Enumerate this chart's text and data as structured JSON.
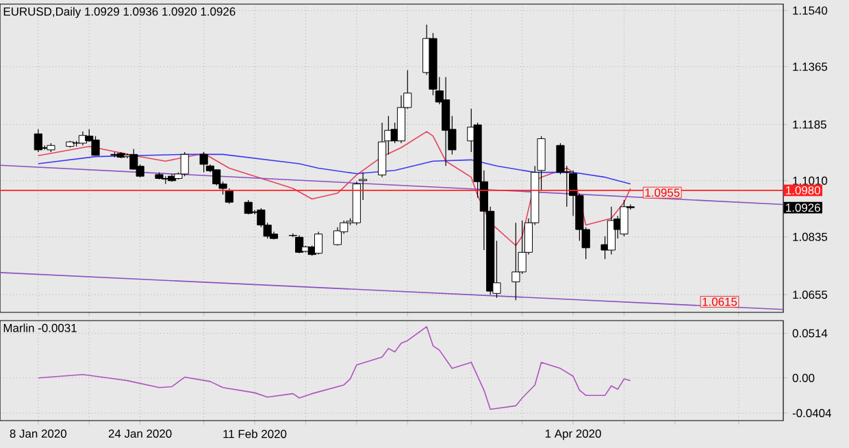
{
  "chart_data": [
    {
      "type": "candlestick",
      "title": "EURUSD,Daily 1.0929 1.0936 1.0920 1.0926",
      "x": [
        "2020-01-08",
        "2020-01-09",
        "2020-01-10",
        "2020-01-13",
        "2020-01-14",
        "2020-01-15",
        "2020-01-16",
        "2020-01-17",
        "2020-01-20",
        "2020-01-21",
        "2020-01-22",
        "2020-01-23",
        "2020-01-24",
        "2020-01-27",
        "2020-01-28",
        "2020-01-29",
        "2020-01-30",
        "2020-01-31",
        "2020-02-03",
        "2020-02-04",
        "2020-02-05",
        "2020-02-06",
        "2020-02-07",
        "2020-02-10",
        "2020-02-11",
        "2020-02-12",
        "2020-02-13",
        "2020-02-14",
        "2020-02-17",
        "2020-02-18",
        "2020-02-19",
        "2020-02-20",
        "2020-02-21",
        "2020-02-24",
        "2020-02-25",
        "2020-02-26",
        "2020-02-27",
        "2020-02-28",
        "2020-03-02",
        "2020-03-03",
        "2020-03-04",
        "2020-03-05",
        "2020-03-06",
        "2020-03-09",
        "2020-03-10",
        "2020-03-11",
        "2020-03-12",
        "2020-03-13",
        "2020-03-16",
        "2020-03-17",
        "2020-03-18",
        "2020-03-19",
        "2020-03-20",
        "2020-03-23",
        "2020-03-24",
        "2020-03-25",
        "2020-03-26",
        "2020-03-27",
        "2020-03-30",
        "2020-03-31",
        "2020-04-01",
        "2020-04-02",
        "2020-04-03",
        "2020-04-06",
        "2020-04-07",
        "2020-04-08",
        "2020-04-09",
        "2020-04-10"
      ],
      "ohlc": [
        [
          1.1156,
          1.117,
          1.1099,
          1.1106
        ],
        [
          1.1113,
          1.112,
          1.1106,
          1.1111
        ],
        [
          1.1106,
          1.1127,
          1.1099,
          1.112
        ],
        [
          1.1117,
          1.1134,
          1.1113,
          1.1131
        ],
        [
          1.1127,
          1.1134,
          1.1117,
          1.1128
        ],
        [
          1.1127,
          1.1163,
          1.112,
          1.1151
        ],
        [
          1.1149,
          1.117,
          1.1131,
          1.1134
        ],
        [
          1.1137,
          1.1149,
          1.1088,
          1.1089
        ],
        [
          1.1092,
          1.1099,
          1.1083,
          1.109
        ],
        [
          1.1095,
          1.1099,
          1.108,
          1.1083
        ],
        [
          1.1085,
          1.1095,
          1.108,
          1.109
        ],
        [
          1.1092,
          1.1109,
          1.1044,
          1.1046
        ],
        [
          1.1055,
          1.1061,
          1.1021,
          1.1024
        ],
        [
          1.1029,
          1.1036,
          1.1014,
          1.1017
        ],
        [
          1.1017,
          1.1024,
          1.1,
          1.1015
        ],
        [
          1.1024,
          1.1031,
          1.1007,
          1.101
        ],
        [
          1.1017,
          1.1036,
          1.1014,
          1.1031
        ],
        [
          1.1031,
          1.1099,
          1.1024,
          1.1092
        ],
        [
          1.1092,
          1.1099,
          1.1036,
          1.1061
        ],
        [
          1.1056,
          1.1061,
          1.1036,
          1.1041
        ],
        [
          1.1044,
          1.1046,
          1.0995,
          1.1
        ],
        [
          1.1,
          1.1007,
          1.0967,
          1.0986
        ],
        [
          1.0978,
          1.0986,
          1.0938,
          1.0943
        ],
        [
          1.0943,
          1.095,
          1.0905,
          1.0908
        ],
        [
          1.0913,
          1.0919,
          1.0905,
          1.0911
        ],
        [
          1.0919,
          1.0925,
          1.0865,
          1.0872
        ],
        [
          1.0872,
          1.0879,
          1.083,
          1.0837
        ],
        [
          1.0844,
          1.0851,
          1.0827,
          1.083
        ],
        [
          1.0839,
          1.0846,
          1.0834,
          1.084
        ],
        [
          1.0834,
          1.084,
          1.0784,
          1.0787
        ],
        [
          1.079,
          1.0808,
          1.0787,
          1.0804
        ],
        [
          1.0804,
          1.0808,
          1.0776,
          1.078
        ],
        [
          1.0784,
          1.0851,
          1.078,
          1.0844
        ],
        [
          1.0811,
          1.0865,
          1.0808,
          1.0854
        ],
        [
          1.0851,
          1.0886,
          1.0844,
          1.0879
        ],
        [
          1.0879,
          1.0893,
          1.0872,
          1.0884
        ],
        [
          1.0879,
          1.1007,
          1.0872,
          1.1
        ],
        [
          1.101,
          1.1036,
          1.095,
          1.1014
        ],
        [
          1.1028,
          1.1191,
          1.1021,
          1.1131
        ],
        [
          1.1134,
          1.1212,
          1.1092,
          1.1167
        ],
        [
          1.117,
          1.1191,
          1.1127,
          1.1134
        ],
        [
          1.1134,
          1.1276,
          1.1127,
          1.1238
        ],
        [
          1.1238,
          1.1354,
          1.1234,
          1.1283
        ],
        [
          1.1347,
          1.1496,
          1.134,
          1.1453
        ],
        [
          1.1453,
          1.147,
          1.1276,
          1.1295
        ],
        [
          1.129,
          1.1333,
          1.1248,
          1.1255
        ],
        [
          1.1262,
          1.1333,
          1.1056,
          1.1167
        ],
        [
          1.117,
          1.1212,
          1.1092,
          1.1106
        ],
        [
          1.1134,
          1.1234,
          1.1099,
          1.1177
        ],
        [
          1.1184,
          1.1191,
          1.0957,
          1.1007
        ],
        [
          1.1007,
          1.1042,
          1.0794,
          1.0915
        ],
        [
          1.0915,
          1.0929,
          1.0655,
          1.0666
        ],
        [
          1.0659,
          1.0823,
          1.0645,
          1.0692
        ],
        [
          1.0695,
          1.0879,
          1.0638,
          1.0726
        ],
        [
          1.0726,
          1.0886,
          1.072,
          1.0787
        ],
        [
          1.0787,
          1.0893,
          1.078,
          1.0879
        ],
        [
          1.0879,
          1.1056,
          1.0872,
          1.1036
        ],
        [
          1.1042,
          1.1149,
          1.0978,
          1.1141
        ],
        [
          1.112,
          1.1127,
          1.103,
          1.1036
        ],
        [
          1.1038,
          1.1056,
          1.0929,
          1.1036
        ],
        [
          1.1032,
          1.1042,
          1.09,
          1.0964
        ],
        [
          1.0964,
          1.097,
          1.0823,
          1.0858
        ],
        [
          1.0858,
          1.0865,
          1.0766,
          1.0801
        ],
        [
          1.0811,
          1.0837,
          1.0766,
          1.0794
        ],
        [
          1.0794,
          1.0929,
          1.078,
          1.0886
        ],
        [
          1.0891,
          1.09,
          1.083,
          1.0858
        ],
        [
          1.0844,
          1.095,
          1.0837,
          1.0929
        ],
        [
          1.0929,
          1.0936,
          1.092,
          1.0926
        ]
      ],
      "series": [
        {
          "type": "line",
          "color": "#e8405a",
          "x": [
            "2020-01-08",
            "2020-01-16",
            "2020-01-24",
            "2020-01-28",
            "2020-02-03",
            "2020-02-07",
            "2020-02-17",
            "2020-02-20",
            "2020-02-24",
            "2020-02-27",
            "2020-03-02",
            "2020-03-05",
            "2020-03-09",
            "2020-03-10",
            "2020-03-12",
            "2020-03-16",
            "2020-03-17",
            "2020-03-19",
            "2020-03-23",
            "2020-03-24",
            "2020-03-25",
            "2020-03-26",
            "2020-03-27",
            "2020-03-31",
            "2020-04-01",
            "2020-04-03",
            "2020-04-07",
            "2020-04-09",
            "2020-04-10"
          ],
          "values": [
            1.1088,
            1.1117,
            1.1085,
            1.1071,
            1.1095,
            1.1049,
            1.0986,
            1.0953,
            1.0971,
            1.1028,
            1.1085,
            1.1113,
            1.1163,
            1.1149,
            1.1071,
            1.1021,
            1.0964,
            1.0879,
            1.0808,
            1.0837,
            1.0922,
            1.1007,
            1.1021,
            1.1049,
            1.1036,
            1.0872,
            1.0893,
            1.0943,
            1.0986
          ]
        },
        {
          "type": "line",
          "color": "#3a3af0",
          "x": [
            "2020-01-08",
            "2020-01-17",
            "2020-01-31",
            "2020-02-06",
            "2020-02-18",
            "2020-02-21",
            "2020-02-27",
            "2020-03-04",
            "2020-03-10",
            "2020-03-16",
            "2020-03-20",
            "2020-03-26",
            "2020-04-01",
            "2020-04-06",
            "2020-04-10"
          ],
          "values": [
            1.1063,
            1.1085,
            1.1092,
            1.1092,
            1.1063,
            1.1049,
            1.1032,
            1.1042,
            1.1071,
            1.1075,
            1.1056,
            1.1036,
            1.1036,
            1.1021,
            1.1
          ]
        },
        {
          "type": "line",
          "color": "#8a50c0",
          "x": [
            "2020-01-02",
            "2020-05-04"
          ],
          "values": [
            1.1058,
            1.0936
          ]
        },
        {
          "type": "line",
          "color": "#8a50c0",
          "x": [
            "2020-01-02",
            "2020-05-04"
          ],
          "values": [
            1.0724,
            1.0609
          ]
        }
      ],
      "xlim": [
        "2020-01-02",
        "2020-05-04"
      ],
      "xticks": [
        {
          "value": "2020-01-08",
          "label": null
        },
        {
          "value": "2020-01-16",
          "label": null
        },
        {
          "value": "2020-01-24",
          "label": null
        },
        {
          "value": "2020-02-03",
          "label": null
        },
        {
          "value": "2020-02-11",
          "label": null
        },
        {
          "value": "2020-02-19",
          "label": null
        },
        {
          "value": "2020-02-27",
          "label": null
        },
        {
          "value": "2020-03-06",
          "label": null
        },
        {
          "value": "2020-03-16",
          "label": null
        },
        {
          "value": "2020-03-24",
          "label": null
        },
        {
          "value": "2020-04-01",
          "label": null
        },
        {
          "value": "2020-04-09",
          "label": null
        },
        {
          "value": "2020-04-17",
          "label": null
        },
        {
          "value": "2020-04-27",
          "label": null
        }
      ],
      "ylim": [
        1.06,
        1.156
      ],
      "yticks": [
        {
          "value": 1.154,
          "label": "1.1540"
        },
        1.1365,
        1.1185,
        {
          "value": 1.101,
          "label": "1.1010"
        },
        1.0835,
        1.0655
      ],
      "grid": true,
      "tick_labels": "y",
      "ref_lines": [
        {
          "axis": "y",
          "value": 1.098,
          "label": "1.0980",
          "color": "#ff2020"
        }
      ],
      "annotations": [
        {
          "text": "1.0955",
          "x": "2020-04-15",
          "y": 1.0955
        },
        {
          "text": "1.0615",
          "x": "2020-04-24",
          "y": 1.0615
        },
        "1.0926"
      ]
    },
    {
      "type": "line",
      "title": "Marlin -0.0031",
      "series": [
        {
          "color": "#b050c0",
          "x": [
            "2020-01-08",
            "2020-01-15",
            "2020-01-20",
            "2020-01-22",
            "2020-01-27",
            "2020-01-29",
            "2020-01-31",
            "2020-02-04",
            "2020-02-06",
            "2020-02-11",
            "2020-02-13",
            "2020-02-17",
            "2020-02-18",
            "2020-02-20",
            "2020-02-25",
            "2020-02-26",
            "2020-02-27",
            "2020-03-02",
            "2020-03-03",
            "2020-03-04",
            "2020-03-05",
            "2020-03-06",
            "2020-03-09",
            "2020-03-10",
            "2020-03-11",
            "2020-03-13",
            "2020-03-16",
            "2020-03-18",
            "2020-03-19",
            "2020-03-23",
            "2020-03-24",
            "2020-03-26",
            "2020-03-27",
            "2020-03-30",
            "2020-04-01",
            "2020-04-02",
            "2020-04-03",
            "2020-04-06",
            "2020-04-07",
            "2020-04-08",
            "2020-04-09",
            "2020-04-10"
          ],
          "values": [
            0.0,
            0.004,
            -0.001,
            -0.003,
            -0.011,
            -0.01,
            0.001,
            -0.004,
            -0.011,
            -0.017,
            -0.022,
            -0.018,
            -0.023,
            -0.018,
            -0.008,
            -0.001,
            0.015,
            0.024,
            0.034,
            0.03,
            0.04,
            0.043,
            0.059,
            0.037,
            0.032,
            0.011,
            0.018,
            -0.014,
            -0.036,
            -0.032,
            -0.023,
            -0.008,
            0.018,
            0.011,
            0.002,
            -0.014,
            -0.02,
            -0.02,
            -0.009,
            -0.013,
            -0.001,
            -0.0031
          ]
        }
      ],
      "xlim": [
        "2020-01-02",
        "2020-05-04"
      ],
      "xticks": [
        {
          "value": "2020-01-08",
          "label": "8 Jan 2020"
        },
        {
          "value": "2020-01-16",
          "label": null
        },
        {
          "value": "2020-01-24",
          "label": "24 Jan 2020"
        },
        {
          "value": "2020-02-03",
          "label": null
        },
        {
          "value": "2020-02-11",
          "label": "11 Feb 2020"
        },
        {
          "value": "2020-02-19",
          "label": null
        },
        {
          "value": "2020-02-27",
          "label": null
        },
        {
          "value": "2020-03-06",
          "label": null
        },
        {
          "value": "2020-03-16",
          "label": null
        },
        {
          "value": "2020-03-24",
          "label": null
        },
        {
          "value": "2020-04-01",
          "label": "1 Apr 2020"
        },
        {
          "value": "2020-04-09",
          "label": null
        },
        {
          "value": "2020-04-17",
          "label": null
        },
        {
          "value": "2020-04-27",
          "label": null
        }
      ],
      "ylim": [
        -0.049,
        0.066
      ],
      "yticks": [
        0.0514,
        {
          "value": 0,
          "label": "0.00"
        },
        -0.0404
      ],
      "grid": true
    }
  ]
}
